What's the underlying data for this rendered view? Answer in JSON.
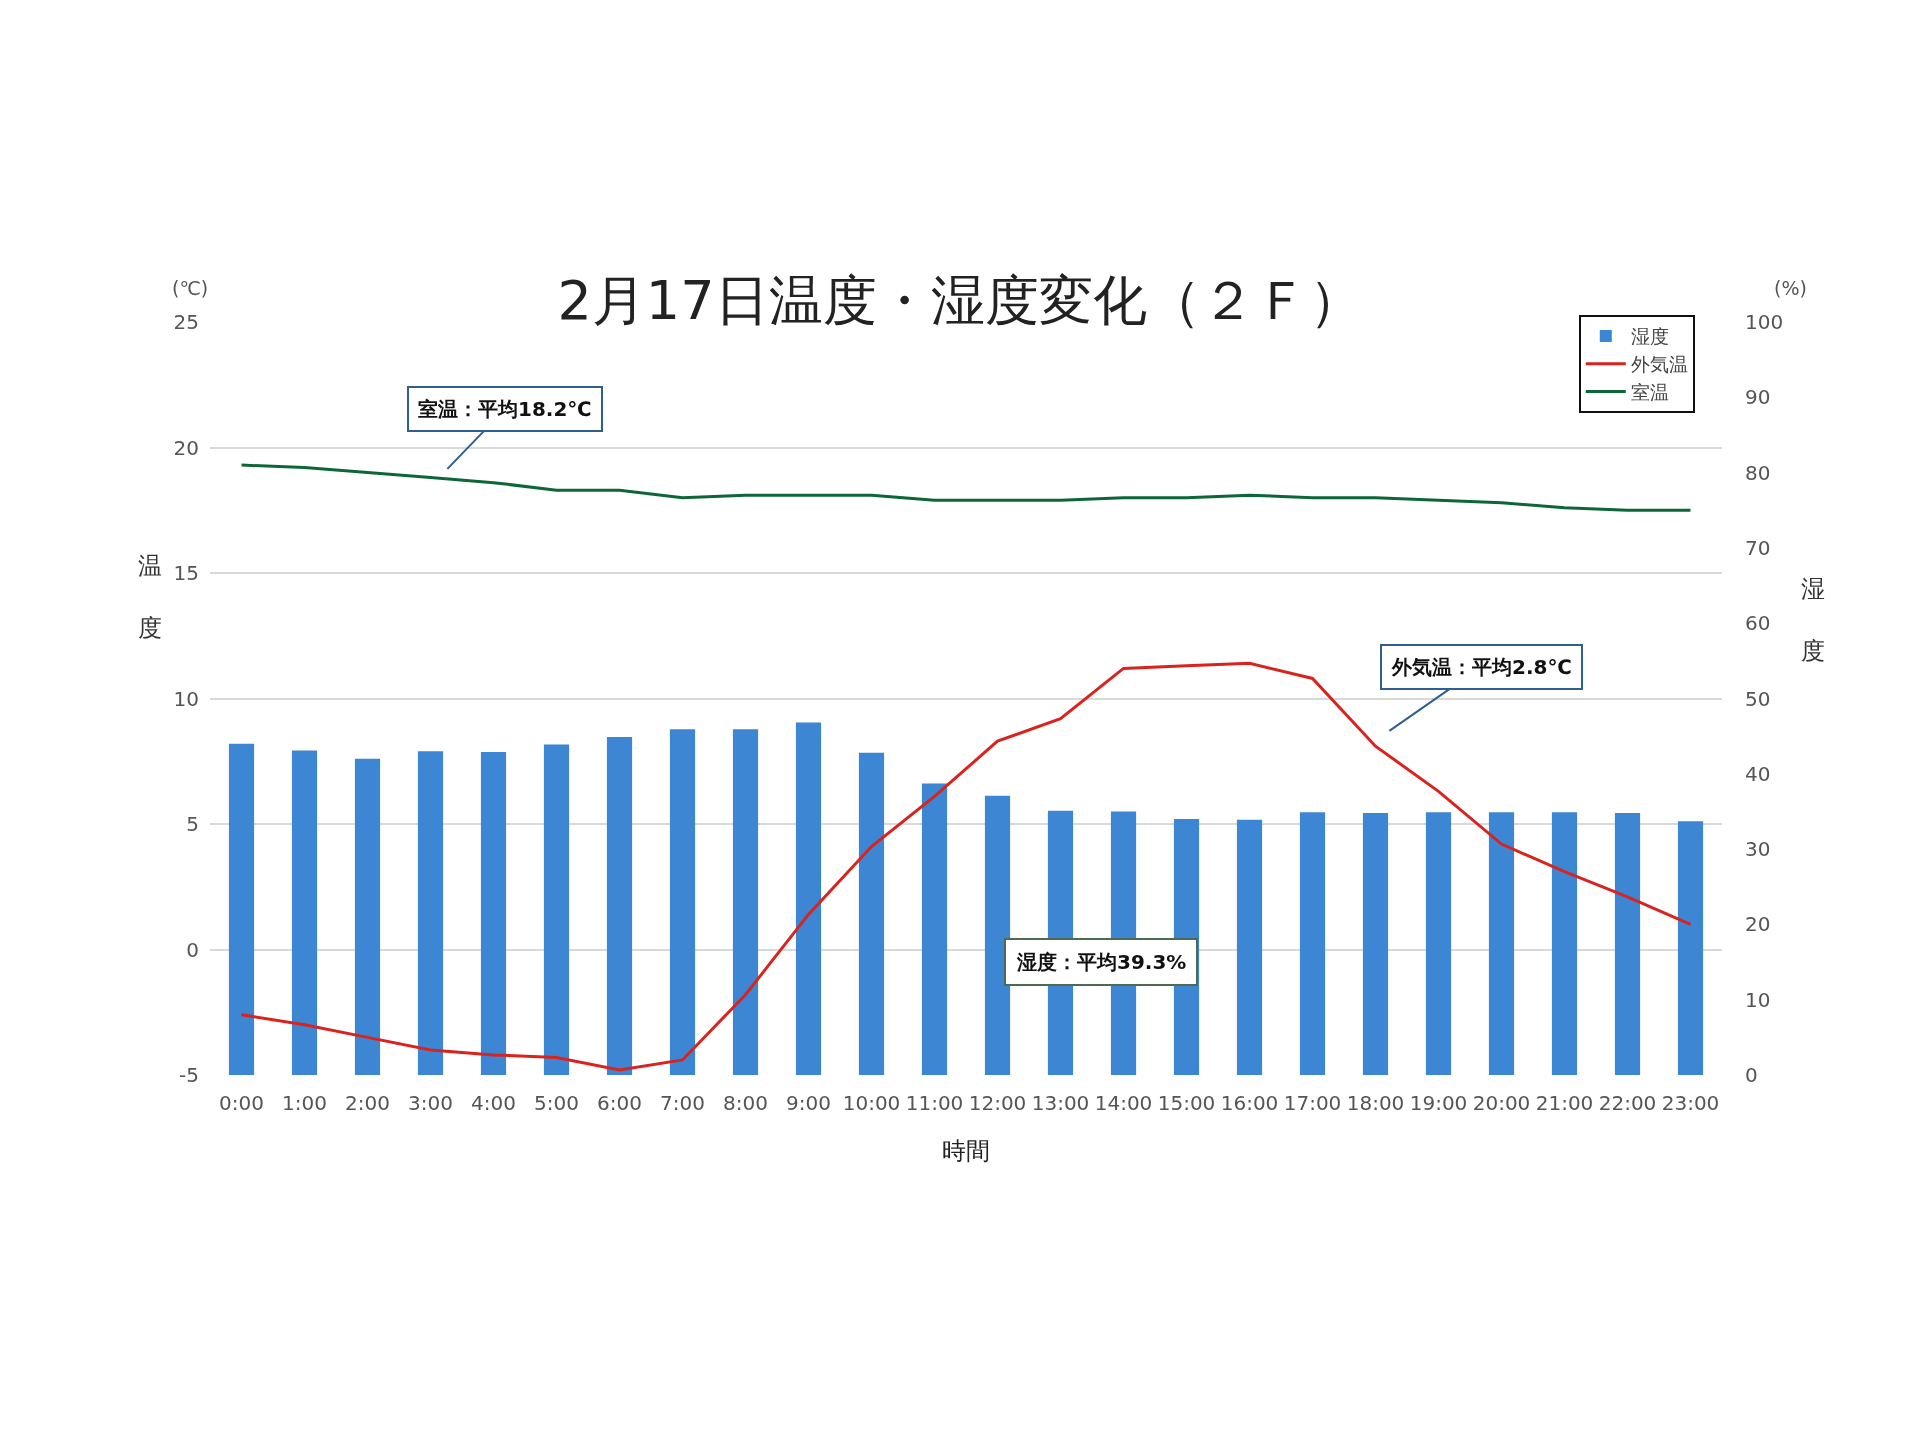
{
  "chart_data": {
    "type": "bar",
    "title": "2月17日温度・湿度変化（２Ｆ）",
    "xlabel": "時間",
    "ylabel": "温度",
    "y2label": "湿度",
    "categories": [
      "0:00",
      "1:00",
      "2:00",
      "3:00",
      "4:00",
      "5:00",
      "6:00",
      "7:00",
      "8:00",
      "9:00",
      "10:00",
      "11:00",
      "12:00",
      "13:00",
      "14:00",
      "15:00",
      "16:00",
      "17:00",
      "18:00",
      "19:00",
      "20:00",
      "21:00",
      "22:00",
      "23:00"
    ],
    "series": [
      {
        "name": "湿度",
        "axis": "y2",
        "color": "#3d86d3",
        "values": [
          44.0,
          43.1,
          42.0,
          43.0,
          42.9,
          43.9,
          44.9,
          45.9,
          45.9,
          46.8,
          42.8,
          38.7,
          37.1,
          35.1,
          35.0,
          34.0,
          33.9,
          34.9,
          34.8,
          34.9,
          34.9,
          34.9,
          34.8,
          33.7
        ]
      },
      {
        "name": "外気温",
        "type": "line",
        "color": "#d8231f",
        "values": [
          -2.6,
          -3.0,
          -3.5,
          -4.0,
          -4.2,
          -4.3,
          -4.8,
          -4.4,
          -1.8,
          1.4,
          4.1,
          6.1,
          8.3,
          9.2,
          11.2,
          11.3,
          11.4,
          10.8,
          8.1,
          6.3,
          4.2,
          3.1,
          2.1,
          1.0
        ]
      },
      {
        "name": "室温",
        "type": "line",
        "color": "#0d6638",
        "values": [
          19.3,
          19.2,
          19.0,
          18.8,
          18.6,
          18.3,
          18.3,
          18.0,
          18.1,
          18.1,
          18.1,
          17.9,
          17.9,
          17.9,
          18.0,
          18.0,
          18.1,
          18.0,
          18.0,
          17.9,
          17.8,
          17.6,
          17.5,
          17.5
        ]
      }
    ],
    "ylim": [
      -5,
      25
    ],
    "yticks": [
      -5,
      0,
      5,
      10,
      15,
      20,
      25
    ],
    "y2lim": [
      0,
      100
    ],
    "y2ticks": [
      0,
      10,
      20,
      30,
      40,
      50,
      60,
      70,
      80,
      90,
      100
    ],
    "grid": "y",
    "legend": "top right",
    "annotations": [
      "(℃)",
      "(%)",
      "室温：平均18.2℃",
      "外気温：平均2.8℃",
      "湿度：平均39.3%"
    ]
  }
}
